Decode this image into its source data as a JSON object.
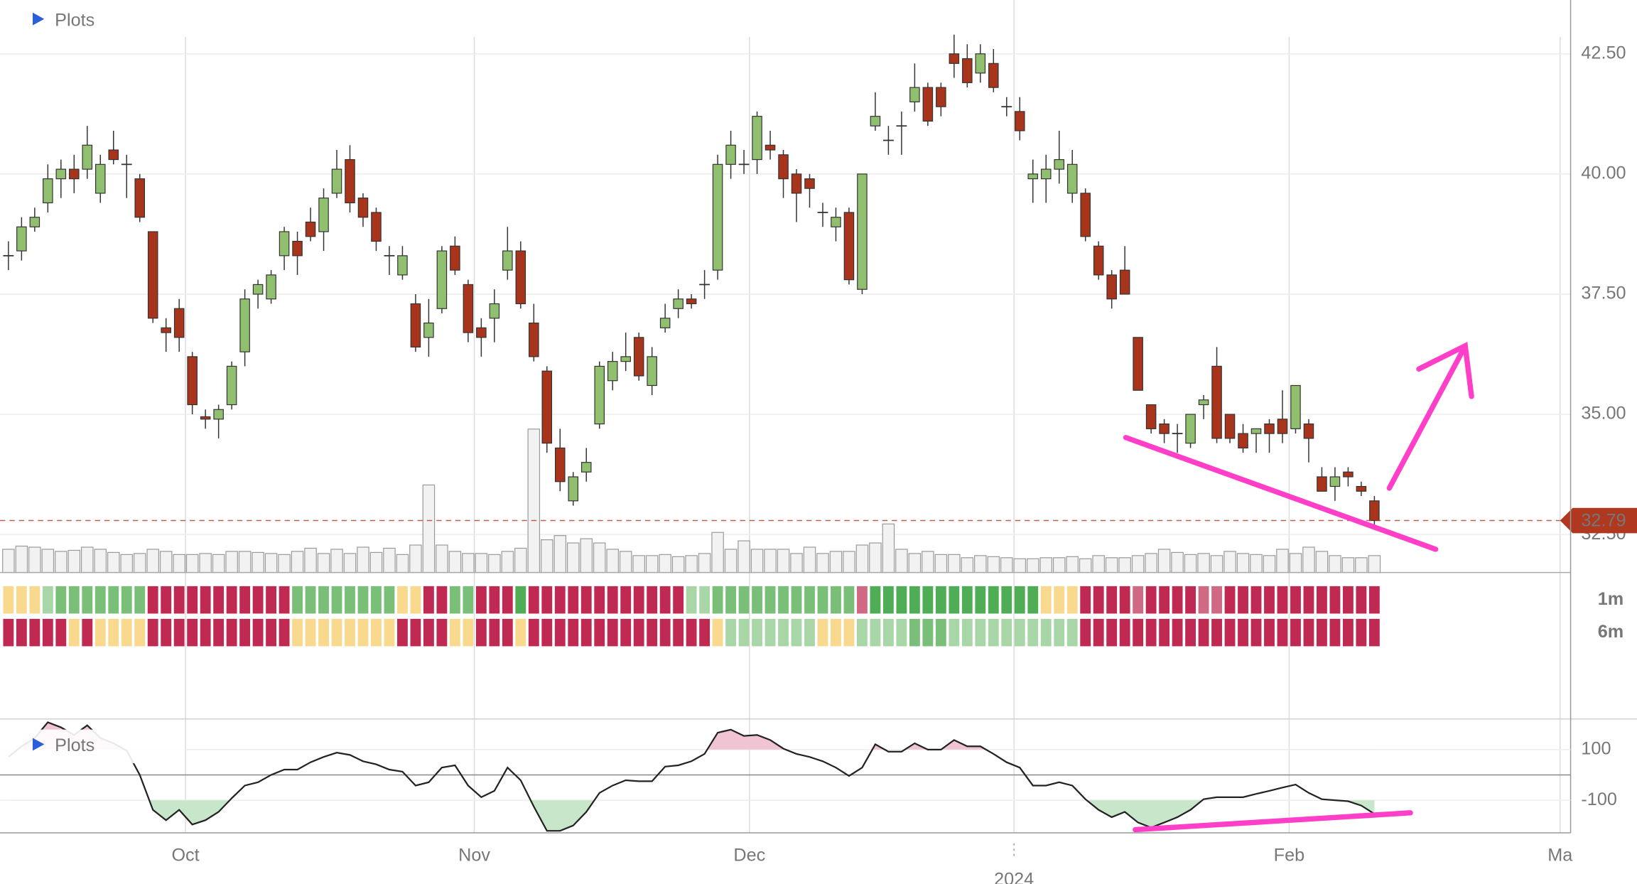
{
  "chart_data": [
    {
      "type": "candlestick",
      "label": "Plots",
      "open": [
        38.3,
        38.4,
        38.9,
        39.4,
        39.9,
        40.1,
        40.1,
        39.6,
        40.5,
        40.2,
        39.9,
        38.8,
        36.8,
        37.2,
        36.2,
        34.95,
        34.9,
        35.2,
        36.3,
        37.5,
        37.4,
        38.3,
        38.6,
        39.0,
        38.8,
        39.6,
        40.3,
        39.5,
        39.2,
        38.3,
        37.9,
        37.3,
        36.6,
        37.2,
        38.5,
        37.7,
        36.8,
        37.0,
        38.0,
        38.4,
        36.9,
        35.9,
        34.3,
        33.2,
        33.8,
        34.8,
        35.7,
        36.1,
        36.6,
        35.6,
        36.8,
        37.2,
        37.4,
        37.7,
        38.0,
        40.2,
        40.2,
        40.3,
        40.6,
        40.4,
        40.0,
        39.9,
        39.2,
        38.9,
        39.2,
        37.6,
        41.0,
        40.7,
        41.0,
        41.5,
        41.8,
        41.8,
        42.5,
        42.4,
        42.1,
        42.3,
        41.4,
        41.3,
        39.9,
        39.9,
        40.1,
        39.6,
        39.6,
        38.5,
        37.9,
        38.0,
        36.6,
        35.2,
        34.8,
        34.6,
        34.4,
        35.2,
        36.0,
        35.0,
        34.6,
        34.6,
        34.8,
        34.9,
        34.7,
        34.8,
        33.7,
        33.5,
        33.8,
        33.5,
        33.2
      ],
      "high": [
        38.6,
        39.1,
        39.3,
        40.2,
        40.3,
        40.4,
        41.0,
        40.4,
        40.9,
        40.4,
        40.0,
        38.8,
        37.0,
        37.4,
        36.3,
        35.1,
        35.2,
        36.1,
        37.6,
        37.8,
        38.0,
        38.9,
        38.8,
        39.3,
        39.7,
        40.5,
        40.6,
        39.6,
        39.3,
        38.5,
        38.5,
        37.5,
        37.4,
        38.5,
        38.7,
        37.8,
        37.0,
        37.6,
        38.9,
        38.6,
        37.3,
        36.0,
        34.7,
        33.8,
        34.3,
        36.1,
        36.3,
        36.7,
        36.7,
        36.4,
        37.3,
        37.6,
        37.5,
        38.0,
        40.4,
        40.9,
        40.5,
        41.3,
        40.9,
        40.5,
        40.1,
        40.0,
        39.4,
        39.3,
        39.3,
        40.0,
        41.7,
        41.0,
        41.3,
        42.3,
        41.9,
        41.9,
        42.9,
        42.7,
        42.7,
        42.6,
        41.6,
        41.6,
        40.3,
        40.4,
        40.9,
        40.5,
        39.7,
        38.6,
        38.0,
        38.5,
        36.6,
        35.2,
        34.9,
        34.8,
        35.0,
        35.4,
        36.4,
        35.0,
        34.8,
        34.7,
        34.9,
        35.5,
        35.6,
        34.9,
        33.9,
        33.9,
        33.9,
        33.6,
        33.3
      ],
      "low": [
        38.0,
        38.2,
        38.8,
        39.2,
        39.5,
        39.6,
        39.9,
        39.4,
        40.2,
        39.5,
        39.0,
        36.9,
        36.3,
        36.3,
        35.0,
        34.7,
        34.5,
        35.1,
        36.0,
        37.2,
        37.3,
        38.0,
        37.9,
        38.6,
        38.4,
        39.5,
        39.2,
        38.9,
        38.4,
        37.9,
        37.8,
        36.3,
        36.2,
        37.1,
        37.9,
        36.5,
        36.2,
        36.5,
        37.8,
        37.2,
        36.1,
        34.2,
        33.4,
        33.1,
        33.6,
        34.7,
        35.5,
        35.9,
        35.7,
        35.4,
        36.7,
        37.0,
        37.2,
        37.4,
        37.8,
        39.9,
        40.0,
        40.0,
        40.3,
        39.5,
        39.0,
        39.3,
        38.9,
        38.6,
        37.7,
        37.5,
        40.9,
        40.4,
        40.4,
        41.3,
        41.0,
        41.2,
        42.0,
        41.8,
        41.9,
        41.7,
        41.2,
        40.7,
        39.4,
        39.4,
        39.8,
        39.4,
        38.6,
        37.8,
        37.2,
        37.5,
        35.5,
        34.6,
        34.4,
        34.2,
        34.3,
        34.9,
        34.4,
        34.4,
        34.2,
        34.2,
        34.2,
        34.4,
        34.6,
        34.0,
        33.4,
        33.2,
        33.5,
        33.3,
        32.6
      ],
      "close": [
        38.3,
        38.9,
        39.1,
        39.9,
        40.1,
        39.9,
        40.6,
        40.2,
        40.3,
        40.2,
        39.1,
        37.0,
        36.7,
        36.6,
        35.2,
        34.9,
        35.1,
        36.0,
        37.4,
        37.7,
        37.9,
        38.8,
        38.3,
        38.7,
        39.5,
        40.1,
        39.4,
        39.1,
        38.6,
        38.3,
        38.3,
        36.4,
        36.9,
        38.4,
        38.0,
        36.7,
        36.6,
        37.3,
        38.4,
        37.3,
        36.2,
        34.4,
        33.6,
        33.7,
        34.0,
        36.0,
        36.1,
        36.2,
        35.8,
        36.2,
        37.0,
        37.4,
        37.3,
        37.7,
        40.2,
        40.6,
        40.2,
        41.2,
        40.5,
        39.9,
        39.6,
        39.7,
        39.2,
        39.1,
        37.8,
        40.0,
        41.2,
        40.7,
        41.0,
        41.8,
        41.1,
        41.4,
        42.3,
        41.9,
        42.5,
        41.8,
        41.4,
        40.9,
        40.0,
        40.1,
        40.3,
        40.2,
        38.7,
        37.9,
        37.4,
        37.5,
        35.5,
        34.7,
        34.6,
        34.6,
        35.0,
        35.3,
        34.5,
        34.5,
        34.3,
        34.7,
        34.6,
        34.6,
        35.6,
        34.5,
        33.4,
        33.7,
        33.7,
        33.4,
        32.79
      ],
      "volume": [
        22,
        25,
        24,
        22,
        20,
        21,
        24,
        22,
        19,
        17,
        18,
        22,
        20,
        17,
        17,
        18,
        17,
        20,
        20,
        19,
        18,
        17,
        20,
        23,
        18,
        22,
        18,
        24,
        19,
        23,
        17,
        26,
        83,
        26,
        20,
        18,
        18,
        17,
        20,
        23,
        136,
        31,
        35,
        28,
        32,
        28,
        22,
        20,
        16,
        16,
        17,
        15,
        16,
        18,
        38,
        22,
        30,
        22,
        22,
        22,
        18,
        24,
        18,
        20,
        20,
        26,
        28,
        46,
        22,
        18,
        20,
        17,
        17,
        14,
        16,
        15,
        14,
        13,
        13,
        14,
        14,
        15,
        13,
        16,
        14,
        14,
        16,
        18,
        22,
        19,
        17,
        18,
        16,
        20,
        18,
        17,
        16,
        22,
        18,
        24,
        20,
        16,
        14,
        14,
        16
      ],
      "volume_lim": [
        0,
        150
      ],
      "up_color": "#8fbf6f",
      "down_color": "#a8341c",
      "volume_color": "#f2f2f2",
      "ylim": [
        31.71,
        43.62
      ],
      "yticks": [
        {
          "value": 32.5,
          "label": "32.50"
        },
        {
          "value": 35,
          "label": "35.00"
        },
        {
          "value": 37.5,
          "label": "37.50"
        },
        {
          "value": 40,
          "label": "40.00"
        },
        {
          "value": 42.5,
          "label": "42.50"
        }
      ],
      "xlim": [
        -0.642,
        118.94
      ],
      "xticks": [
        {
          "value": 13.48,
          "label": "Oct"
        },
        {
          "value": 35.47,
          "label": "Nov"
        },
        {
          "value": 56.42,
          "label": "Dec"
        },
        {
          "value": 97.51,
          "label": "Feb"
        },
        {
          "value": 118.14,
          "label": "Ma"
        }
      ],
      "year_tick": {
        "value": 76.56,
        "label": "2024"
      },
      "last_price": 32.79,
      "last_price_color": "#b0381e",
      "grid": true
    },
    {
      "type": "heatmap",
      "rows": [
        {
          "name": "1m",
          "cells": "YYYLGGGGGGGRRRRRRRRRRRGGGGGGGGYYRRGGRRRDRRRRRRRRRRRRLLGGGGGGGGGGGPDDDDDDDDDDDDDYYYRRRRPRRRRPPRRRRRRRRRRRR"
        },
        {
          "name": "6m",
          "cells": "RRRRRYRYYYYRRRRRRRRRRRYYYYYYYYRRRRYYRRRYRRRRRRRRRRRRRRYLLLLLLLYYYLLLLGGGLLLLLLLLLLRRRRRRRRRRRRRRRRRRRRRRR"
        }
      ],
      "palette": {
        "R": "#c02a52",
        "Y": "#f8d98e",
        "L": "#a9d6a6",
        "G": "#79bf78",
        "D": "#4fae55",
        "P": "#d06a84"
      }
    },
    {
      "type": "line",
      "label": "Plots",
      "values": [
        71,
        113,
        146,
        208,
        188,
        158,
        196,
        146,
        125,
        96,
        0,
        -138,
        -179,
        -138,
        -196,
        -179,
        -146,
        -92,
        -42,
        -29,
        0,
        21,
        21,
        50,
        71,
        88,
        79,
        54,
        42,
        21,
        13,
        -42,
        -29,
        29,
        38,
        -42,
        -88,
        -63,
        29,
        -21,
        -125,
        -221,
        -221,
        -200,
        -146,
        -71,
        -42,
        -21,
        -25,
        -25,
        33,
        38,
        54,
        83,
        167,
        179,
        154,
        158,
        138,
        104,
        83,
        71,
        54,
        29,
        -4,
        29,
        121,
        92,
        92,
        125,
        100,
        100,
        138,
        113,
        113,
        83,
        50,
        29,
        -42,
        -42,
        -29,
        -42,
        -96,
        -138,
        -167,
        -146,
        -188,
        -208,
        -188,
        -167,
        -138,
        -96,
        -88,
        -88,
        -88,
        -75,
        -63,
        -50,
        -38,
        -71,
        -96,
        -100,
        -104,
        -121,
        -154
      ],
      "color": "#222",
      "ylim": [
        -229,
        221
      ],
      "yticks": [
        -100,
        100
      ],
      "ytick_colors": [
        "#5cb85c",
        "#c2306a"
      ],
      "fill_colors": [
        "#c8e6c9",
        "#f0c4d2"
      ],
      "baseline": 0
    }
  ]
}
